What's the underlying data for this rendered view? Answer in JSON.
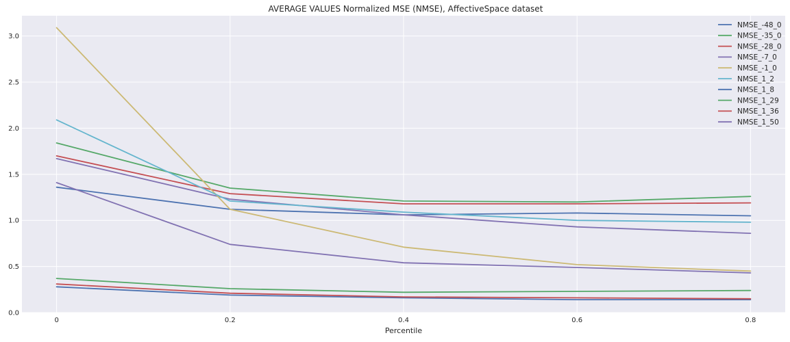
{
  "chart_data": {
    "type": "line",
    "title": "AVERAGE VALUES Normalized MSE (NMSE), AffectiveSpace dataset",
    "xlabel": "Percentile",
    "ylabel": "",
    "x": [
      0,
      0.2,
      0.4,
      0.6,
      0.8
    ],
    "x_ticks": [
      0,
      0.2,
      0.4,
      0.6,
      0.8
    ],
    "x_tick_labels": [
      "0",
      "0.2",
      "0.4",
      "0.6",
      "0.8"
    ],
    "xlim": [
      -0.04,
      0.84
    ],
    "y_ticks": [
      0,
      0.5,
      1.0,
      1.5,
      2.0,
      2.5,
      3.0
    ],
    "y_tick_labels": [
      "0.0",
      "0.5",
      "1.0",
      "1.5",
      "2.0",
      "2.5",
      "3.0"
    ],
    "ylim": [
      0,
      3.22
    ],
    "grid": true,
    "legend_position": "top-right",
    "background_color": "#eaeaf2",
    "grid_color": "#ffffff",
    "series": [
      {
        "name": "NMSE_-48_0",
        "color": "#4c72b0",
        "values": [
          1.36,
          1.12,
          1.06,
          1.08,
          1.05
        ]
      },
      {
        "name": "NMSE_-35_0",
        "color": "#55a868",
        "values": [
          1.84,
          1.35,
          1.21,
          1.2,
          1.26
        ]
      },
      {
        "name": "NMSE_-28_0",
        "color": "#c44e52",
        "values": [
          1.7,
          1.29,
          1.18,
          1.18,
          1.19
        ]
      },
      {
        "name": "NMSE_-7_0",
        "color": "#8172b2",
        "values": [
          1.67,
          1.23,
          1.06,
          0.93,
          0.86
        ]
      },
      {
        "name": "NMSE_-1_0",
        "color": "#ccb974",
        "values": [
          3.09,
          1.12,
          0.71,
          0.52,
          0.45
        ]
      },
      {
        "name": "NMSE_1_2",
        "color": "#64b5cd",
        "values": [
          2.09,
          1.21,
          1.09,
          1.0,
          0.98
        ]
      },
      {
        "name": "NMSE_1_8",
        "color": "#4c72b0",
        "values": [
          0.28,
          0.19,
          0.16,
          0.14,
          0.14
        ]
      },
      {
        "name": "NMSE_1_29",
        "color": "#55a868",
        "values": [
          0.37,
          0.26,
          0.22,
          0.23,
          0.24
        ]
      },
      {
        "name": "NMSE_1_36",
        "color": "#c44e52",
        "values": [
          0.31,
          0.21,
          0.17,
          0.16,
          0.15
        ]
      },
      {
        "name": "NMSE_1_50",
        "color": "#8172b2",
        "values": [
          1.41,
          0.74,
          0.54,
          0.49,
          0.43
        ]
      }
    ]
  }
}
